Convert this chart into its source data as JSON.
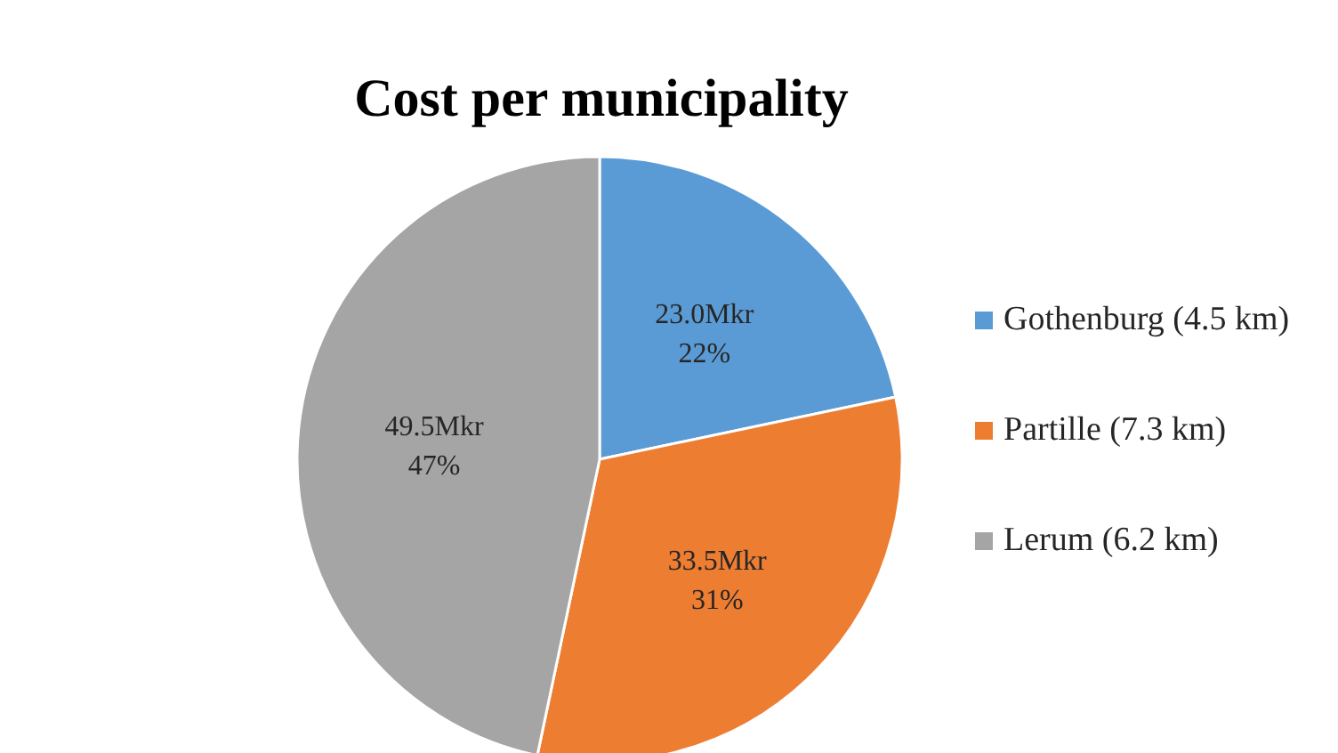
{
  "chart_data": {
    "type": "pie",
    "title": "Cost per municipality",
    "categories": [
      "Gothenburg (4.5 km)",
      "Partille (7.3 km)",
      "Lerum (6.2 km)"
    ],
    "values": [
      23.0,
      33.5,
      49.5
    ],
    "colors": [
      "#5b9bd5",
      "#ed7d31",
      "#a5a5a5"
    ],
    "value_labels": [
      "23.0Mkr\n22%",
      "33.5Mkr\n31%",
      "49.5Mkr\n47%"
    ],
    "legend": "right"
  }
}
